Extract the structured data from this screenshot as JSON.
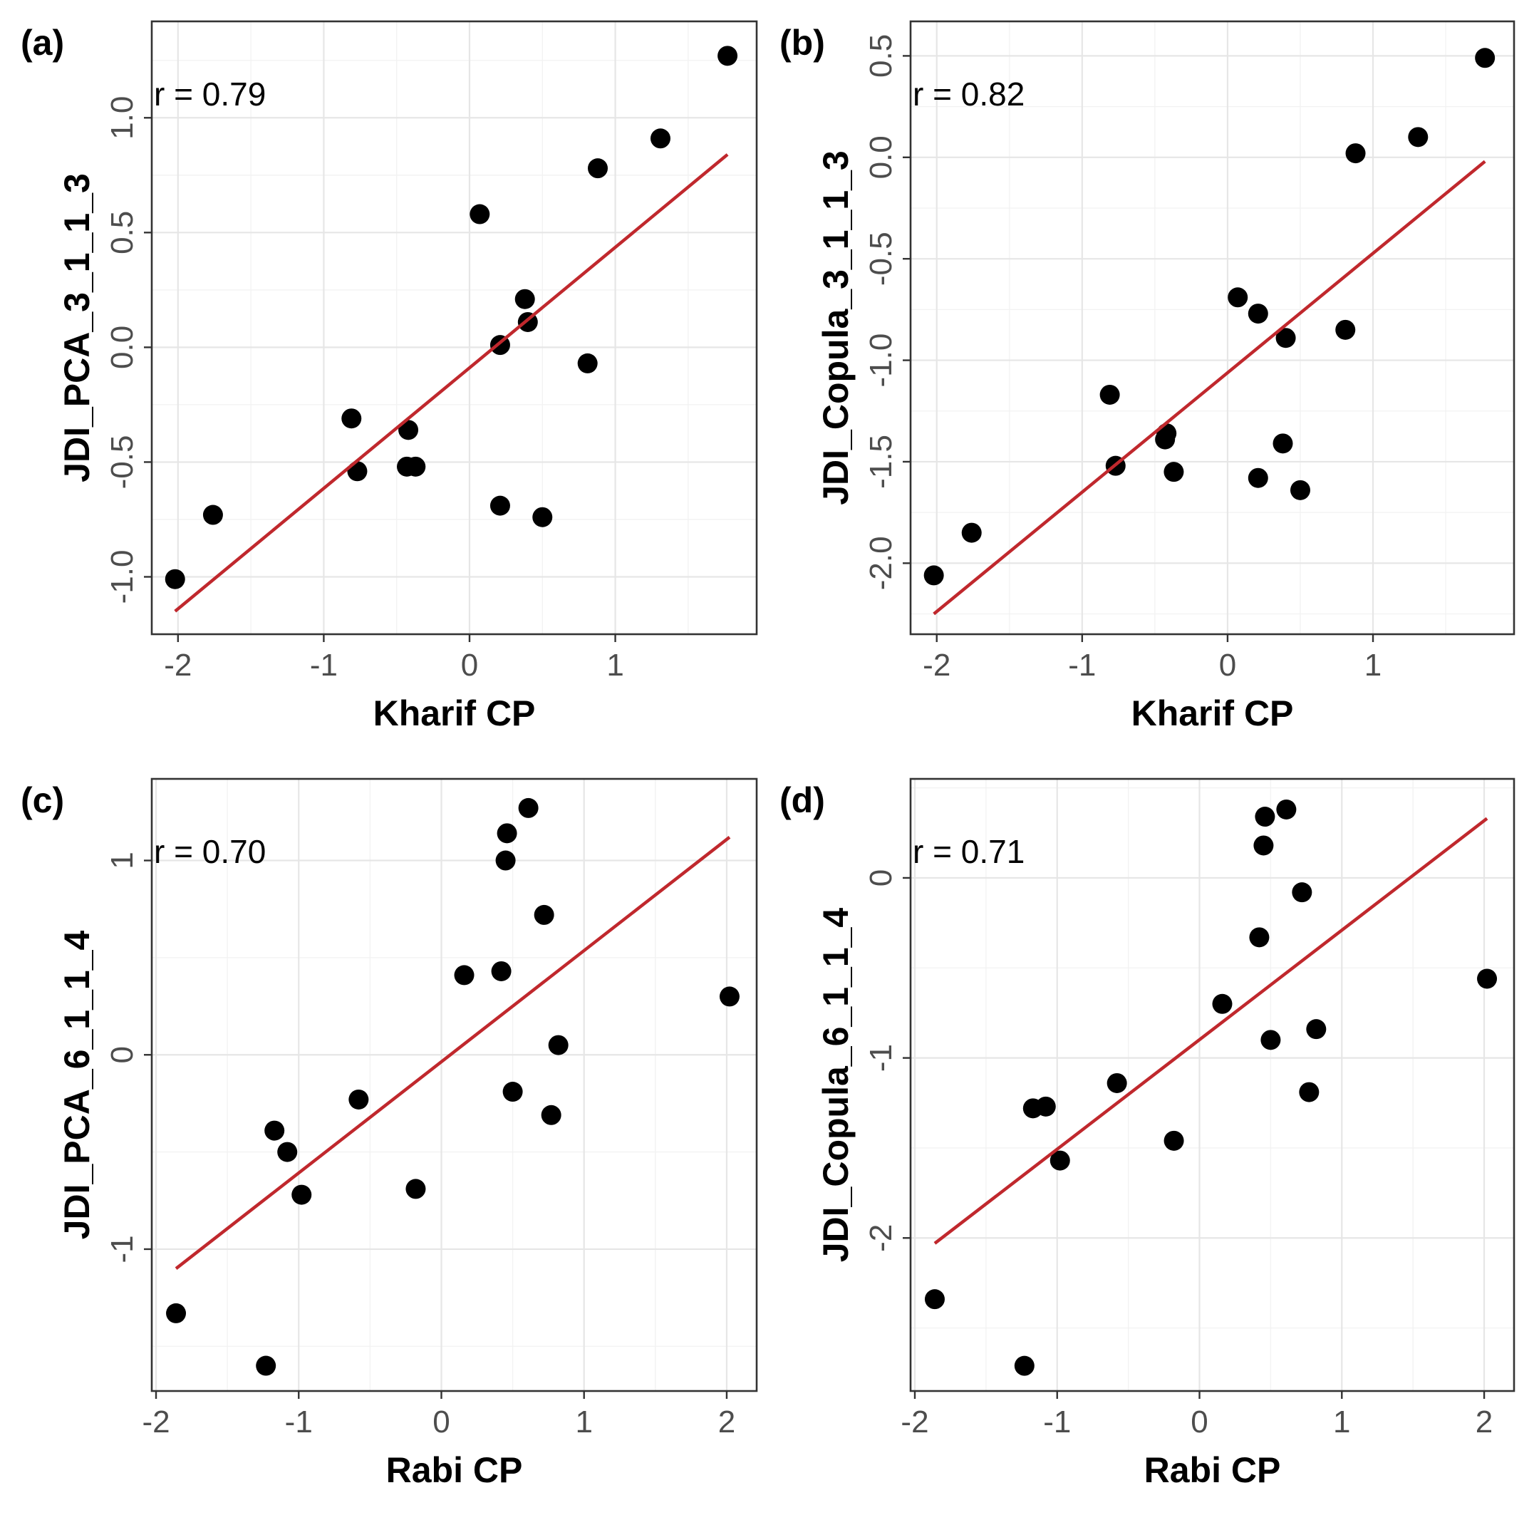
{
  "chart_data": [
    {
      "type": "scatter",
      "panel_label": "(a)",
      "annotation": "r = 0.79",
      "xlabel": "Kharif CP",
      "ylabel": "JDI_PCA_3_1_1_3",
      "xlim": [
        -2.18,
        1.97
      ],
      "ylim": [
        -1.25,
        1.42
      ],
      "x_ticks": [
        -2,
        -1,
        0,
        1
      ],
      "x_tick_labels": [
        "-2",
        "-1",
        "0",
        "1"
      ],
      "y_ticks": [
        -1.0,
        -0.5,
        0.0,
        0.5,
        1.0
      ],
      "y_tick_labels": [
        "-1.0",
        "-0.5",
        "0.0",
        "0.5",
        "1.0"
      ],
      "grid": true,
      "x": [
        -2.02,
        -1.76,
        -0.81,
        -0.77,
        -0.42,
        -0.43,
        -0.37,
        0.07,
        0.21,
        0.21,
        0.38,
        0.4,
        0.5,
        0.81,
        0.88,
        1.31,
        1.77
      ],
      "y": [
        -1.01,
        -0.73,
        -0.31,
        -0.54,
        -0.36,
        -0.52,
        -0.52,
        0.58,
        0.01,
        -0.69,
        0.21,
        0.11,
        -0.74,
        -0.07,
        0.78,
        0.91,
        1.27
      ],
      "fit_line": {
        "x": [
          -2.02,
          1.77
        ],
        "y": [
          -1.15,
          0.84
        ],
        "color": "#c0282d"
      }
    },
    {
      "type": "scatter",
      "panel_label": "(b)",
      "annotation": "r = 0.82",
      "xlabel": "Kharif CP",
      "ylabel": "JDI_Copula_3_1_1_3",
      "xlim": [
        -2.18,
        1.97
      ],
      "ylim": [
        -2.35,
        0.67
      ],
      "x_ticks": [
        -2,
        -1,
        0,
        1
      ],
      "x_tick_labels": [
        "-2",
        "-1",
        "0",
        "1"
      ],
      "y_ticks": [
        -2.0,
        -1.5,
        -1.0,
        -0.5,
        0.0,
        0.5
      ],
      "y_tick_labels": [
        "-2.0",
        "-1.5",
        "-1.0",
        "-0.5",
        "0.0",
        "0.5"
      ],
      "grid": true,
      "x": [
        -2.02,
        -1.76,
        -0.81,
        -0.77,
        -0.42,
        -0.43,
        -0.37,
        0.07,
        0.21,
        0.21,
        0.38,
        0.4,
        0.5,
        0.81,
        0.88,
        1.31,
        1.77
      ],
      "y": [
        -2.06,
        -1.85,
        -1.17,
        -1.52,
        -1.36,
        -1.39,
        -1.55,
        -0.69,
        -0.77,
        -1.58,
        -1.41,
        -0.89,
        -1.64,
        -0.85,
        0.02,
        0.1,
        0.49
      ],
      "fit_line": {
        "x": [
          -2.02,
          1.77
        ],
        "y": [
          -2.25,
          -0.02
        ],
        "color": "#c0282d"
      }
    },
    {
      "type": "scatter",
      "panel_label": "(c)",
      "annotation": "r = 0.70",
      "xlabel": "Rabi CP",
      "ylabel": "JDI_PCA_6_1_1_4",
      "xlim": [
        -2.03,
        2.21
      ],
      "ylim": [
        -1.73,
        1.42
      ],
      "x_ticks": [
        -2,
        -1,
        0,
        1,
        2
      ],
      "x_tick_labels": [
        "-2",
        "-1",
        "0",
        "1",
        "2"
      ],
      "y_ticks": [
        -1,
        0,
        1
      ],
      "y_tick_labels": [
        "-1",
        "0",
        "1"
      ],
      "grid": true,
      "x": [
        -1.86,
        -1.23,
        -1.17,
        -1.08,
        -0.98,
        -0.58,
        -0.18,
        0.16,
        0.42,
        0.45,
        0.46,
        0.5,
        0.61,
        0.72,
        0.77,
        0.82,
        2.02
      ],
      "y": [
        -1.33,
        -1.6,
        -0.39,
        -0.5,
        -0.72,
        -0.23,
        -0.69,
        0.41,
        0.43,
        1.0,
        1.14,
        -0.19,
        1.27,
        0.72,
        -0.31,
        0.05,
        0.3
      ],
      "fit_line": {
        "x": [
          -1.86,
          2.02
        ],
        "y": [
          -1.1,
          1.12
        ],
        "color": "#c0282d"
      }
    },
    {
      "type": "scatter",
      "panel_label": "(d)",
      "annotation": "r = 0.71",
      "xlabel": "Rabi CP",
      "ylabel": "JDI_Copula_6_1_1_4",
      "xlim": [
        -2.03,
        2.21
      ],
      "ylim": [
        -2.85,
        0.55
      ],
      "x_ticks": [
        -2,
        -1,
        0,
        1,
        2
      ],
      "x_tick_labels": [
        "-2",
        "-1",
        "0",
        "1",
        "2"
      ],
      "y_ticks": [
        -2,
        -1,
        0
      ],
      "y_tick_labels": [
        "-2",
        "-1",
        "0"
      ],
      "grid": true,
      "x": [
        -1.86,
        -1.23,
        -1.17,
        -1.08,
        -0.98,
        -0.58,
        -0.18,
        0.16,
        0.42,
        0.45,
        0.46,
        0.5,
        0.61,
        0.72,
        0.77,
        0.82,
        2.02
      ],
      "y": [
        -2.34,
        -2.71,
        -1.28,
        -1.27,
        -1.57,
        -1.14,
        -1.46,
        -0.7,
        -0.33,
        0.18,
        0.34,
        -0.9,
        0.38,
        -0.08,
        -1.19,
        -0.84,
        -0.56
      ],
      "fit_line": {
        "x": [
          -1.86,
          2.02
        ],
        "y": [
          -2.03,
          0.33
        ],
        "color": "#c0282d"
      }
    }
  ]
}
